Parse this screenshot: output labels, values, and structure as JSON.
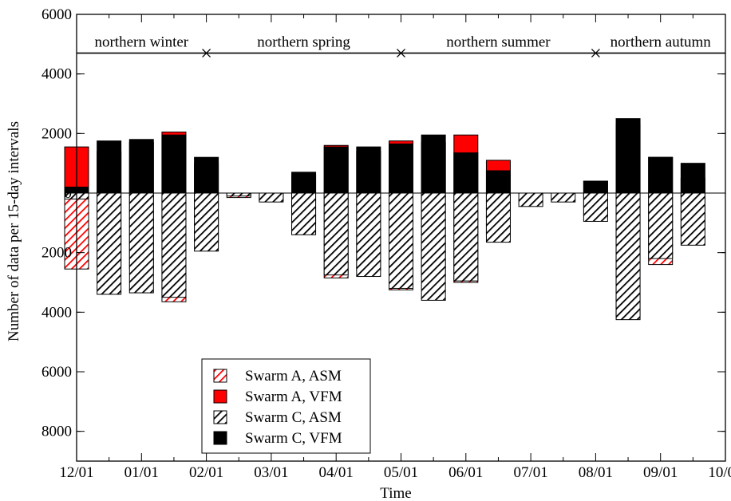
{
  "chart_data": {
    "type": "bar",
    "xlabel": "Time",
    "ylabel": "Number of data per 15-day intervals",
    "ylim": [
      -9000,
      6000
    ],
    "y_ticks": [
      {
        "value": 6000,
        "label": "6000"
      },
      {
        "value": 4000,
        "label": "4000"
      },
      {
        "value": 2000,
        "label": "2000"
      },
      {
        "value": 0,
        "label": "0"
      },
      {
        "value": -2000,
        "label": "2000"
      },
      {
        "value": -4000,
        "label": "4000"
      },
      {
        "value": -6000,
        "label": "6000"
      },
      {
        "value": -8000,
        "label": "8000"
      }
    ],
    "x_ticks": [
      "12/01",
      "01/01",
      "02/01",
      "03/01",
      "04/01",
      "05/01",
      "06/01",
      "07/01",
      "08/01",
      "09/01",
      "10/01"
    ],
    "season_line": 4700,
    "seasons": [
      "northern winter",
      "northern spring",
      "northern summer",
      "northern autumn"
    ],
    "season_markers_at_month": [
      2,
      5,
      8
    ],
    "bars_at_month": [
      0,
      0.5,
      1,
      1.5,
      2,
      2.5,
      3,
      3.5,
      4,
      4.5,
      5,
      5.5,
      6,
      6.5,
      7,
      7.5,
      8,
      8.5,
      9,
      9.5
    ],
    "series": [
      {
        "name": "Swarm A, ASM",
        "color": "#ff0000",
        "pattern": "hatched",
        "direction": "down",
        "values": [
          2550,
          2450,
          2550,
          3650,
          1650,
          150,
          250,
          1000,
          2850,
          2600,
          3250,
          2800,
          3000,
          1400,
          0,
          0,
          750,
          4150,
          2400,
          1200
        ]
      },
      {
        "name": "Swarm A, VFM",
        "color": "#ff0000",
        "pattern": "solid",
        "direction": "up",
        "values": [
          1550,
          1400,
          1700,
          2050,
          1000,
          0,
          0,
          600,
          1600,
          1400,
          1750,
          1700,
          1950,
          1100,
          0,
          0,
          400,
          2300,
          1200,
          500
        ]
      },
      {
        "name": "Swarm C, ASM",
        "color": "#000000",
        "pattern": "hatched",
        "direction": "down",
        "values": [
          200,
          3400,
          3350,
          3500,
          1950,
          100,
          300,
          1400,
          2750,
          2800,
          3200,
          3600,
          2950,
          1650,
          450,
          300,
          950,
          4250,
          2200,
          1750
        ]
      },
      {
        "name": "Swarm C, VFM",
        "color": "#000000",
        "pattern": "solid",
        "direction": "up",
        "values": [
          200,
          1750,
          1800,
          1950,
          1200,
          0,
          0,
          700,
          1550,
          1550,
          1650,
          1950,
          1350,
          750,
          0,
          0,
          400,
          2500,
          1200,
          1000
        ]
      }
    ]
  }
}
